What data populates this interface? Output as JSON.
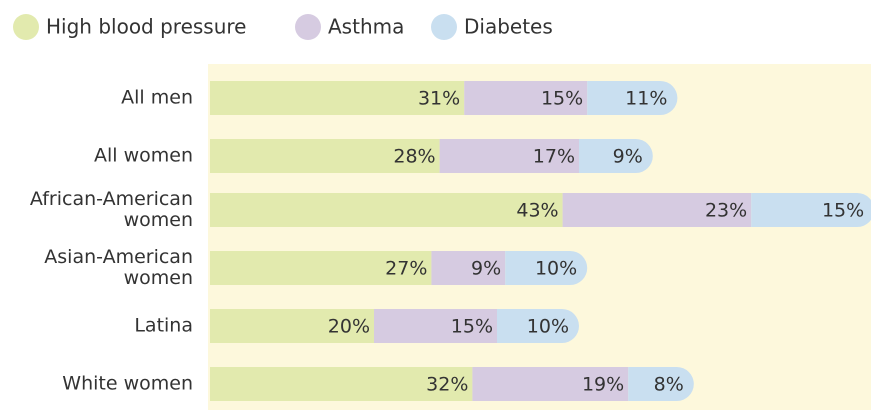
{
  "chart_data": {
    "type": "stacked-bar",
    "categories": [
      "All men",
      "All women",
      "African-American women",
      "Asian-American women",
      "Latina",
      "White women"
    ],
    "series": [
      {
        "name": "High blood pressure",
        "color": "#e2eaae",
        "values": [
          31,
          28,
          43,
          27,
          20,
          32
        ],
        "value_labels": [
          "31%",
          "28%",
          "43%",
          "27%",
          "20%",
          "32%"
        ]
      },
      {
        "name": "Asthma",
        "color": "#d6cbe1",
        "values": [
          15,
          17,
          23,
          9,
          15,
          19
        ],
        "value_labels": [
          "15%",
          "17%",
          "23%",
          "9%",
          "15%",
          "19%"
        ]
      },
      {
        "name": "Diabetes",
        "color": "#c9dff0",
        "values": [
          11,
          9,
          15,
          10,
          10,
          8
        ],
        "value_labels": [
          "11%",
          "9%",
          "15%",
          "10%",
          "10%",
          "8%"
        ]
      }
    ],
    "background": "#fdf8dc",
    "legend": "top-left"
  }
}
